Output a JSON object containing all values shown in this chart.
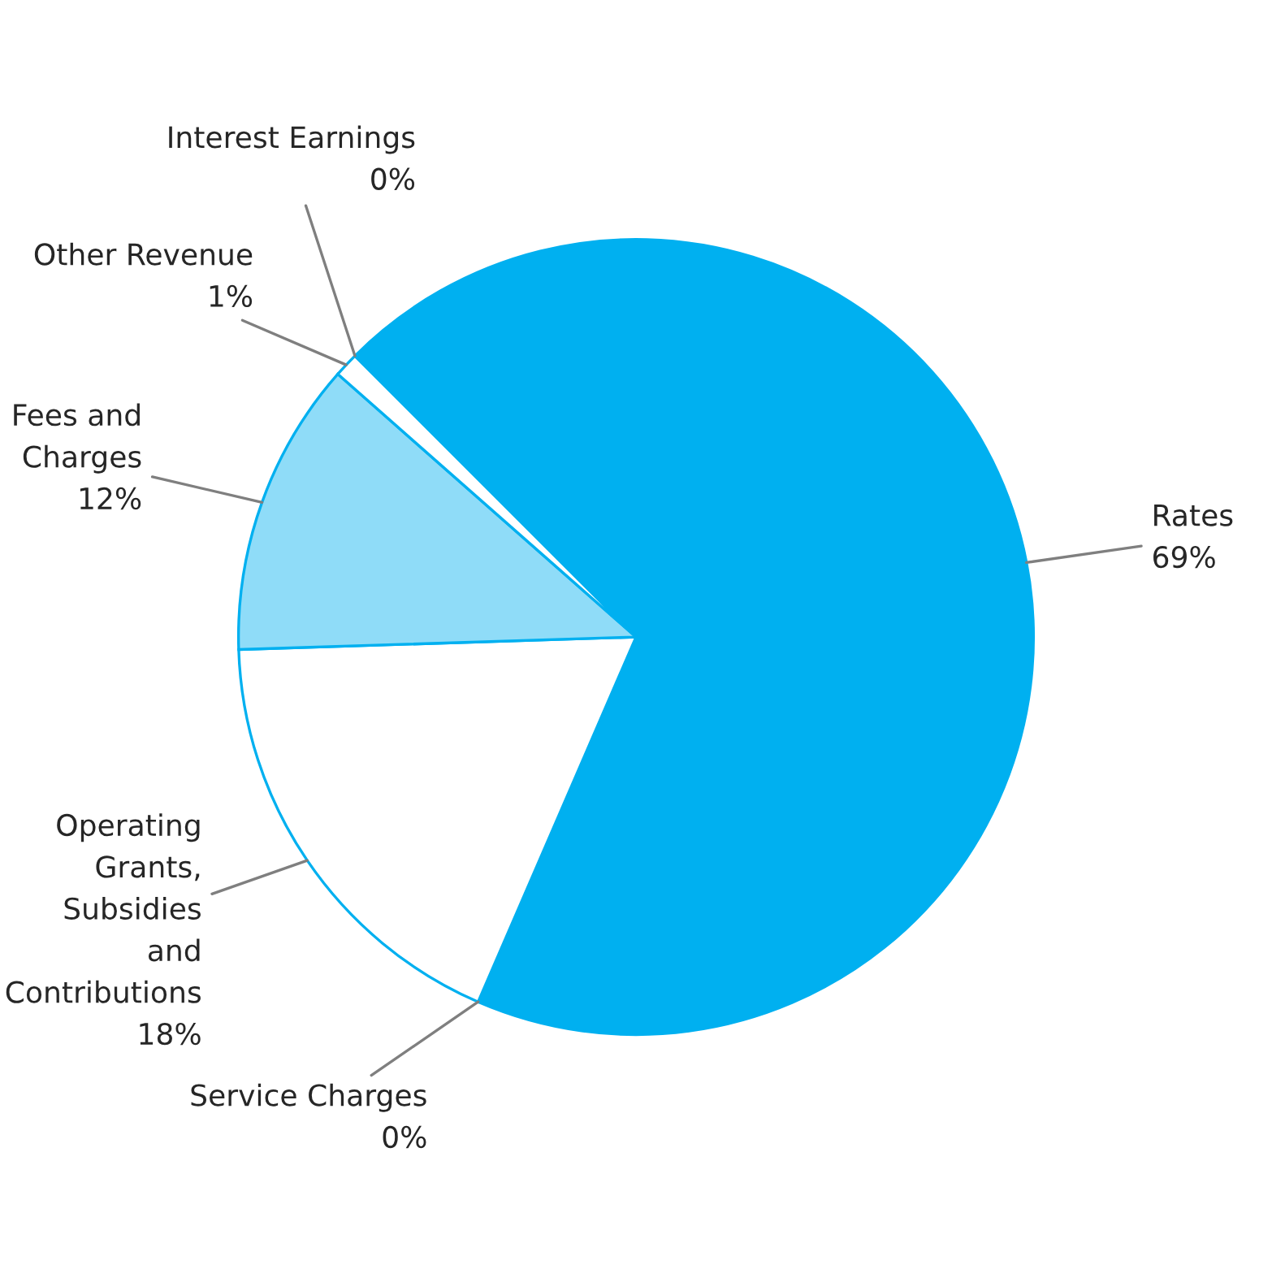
{
  "chart_data": {
    "type": "pie",
    "categories": [
      "Rates",
      "Service Charges",
      "Operating Grants, Subsidies and Contributions",
      "Fees and Charges",
      "Other Revenue",
      "Interest Earnings"
    ],
    "values": [
      69,
      0,
      18,
      12,
      1,
      0
    ],
    "value_labels": [
      "69%",
      "0%",
      "18%",
      "12%",
      "1%",
      "0%"
    ],
    "colors": [
      "#00b0f0",
      "#00b0f0",
      "#ffffff",
      "#8fdcf8",
      "#ffffff",
      "#00b0f0"
    ]
  }
}
